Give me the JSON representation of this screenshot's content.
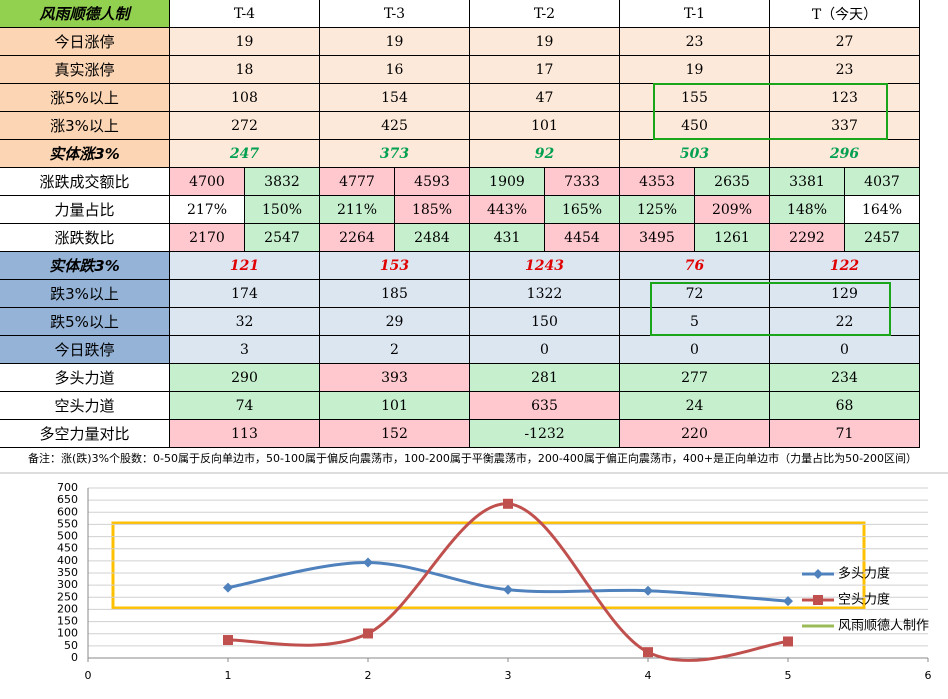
{
  "table": {
    "header": [
      "风雨顺德人制",
      "T-4",
      "T-3",
      "T-2",
      "T-1",
      "T（今天）"
    ],
    "header_bg": "#92d050",
    "rows": [
      {
        "label": "今日涨停",
        "label_bg": "#fcd5b4",
        "cells": [
          19,
          19,
          19,
          23,
          27
        ],
        "fills": [
          "#fde9d9",
          "#fde9d9",
          "#fde9d9",
          "#fde9d9",
          "#fde9d9"
        ]
      },
      {
        "label": "真实涨停",
        "label_bg": "#fcd5b4",
        "cells": [
          18,
          16,
          17,
          19,
          23
        ],
        "fills": [
          "#fde9d9",
          "#fde9d9",
          "#fde9d9",
          "#fde9d9",
          "#fde9d9"
        ]
      },
      {
        "label": "涨5%以上",
        "label_bg": "#fcd5b4",
        "cells": [
          108,
          154,
          47,
          155,
          123
        ],
        "fills": [
          "#fde9d9",
          "#fde9d9",
          "#fde9d9",
          "#fde9d9",
          "#fde9d9"
        ]
      },
      {
        "label": "涨3%以上",
        "label_bg": "#fcd5b4",
        "cells": [
          272,
          425,
          101,
          450,
          337
        ],
        "fills": [
          "#fde9d9",
          "#fde9d9",
          "#fde9d9",
          "#fde9d9",
          "#fde9d9"
        ]
      },
      {
        "label": "实体涨3%",
        "label_bg": "#fcd5b4",
        "cells": [
          247,
          373,
          92,
          503,
          296
        ],
        "fills": [
          "#fde9d9",
          "#fde9d9",
          "#fde9d9",
          "#fde9d9",
          "#fde9d9"
        ],
        "text_color": "#00a050",
        "emphasis": true
      },
      {
        "label": "涨跌成交额比",
        "label_bg": "#ffffff",
        "cells": [
          4700,
          3832,
          4777,
          4593,
          1909,
          7333,
          4353,
          2635,
          3381,
          4037
        ],
        "fills": [
          "#ffc7ce",
          "#c6efce",
          "#ffc7ce",
          "#ffc7ce",
          "#c6efce",
          "#ffc7ce",
          "#ffc7ce",
          "#c6efce",
          "#c6efce",
          "#c6efce"
        ]
      },
      {
        "label": "力量占比",
        "label_bg": "#ffffff",
        "cells": [
          "217%",
          "150%",
          "211%",
          "185%",
          "443%",
          "165%",
          "125%",
          "209%",
          "148%",
          "164%"
        ],
        "fills": [
          "#ffffff",
          "#c6efce",
          "#c6efce",
          "#ffc7ce",
          "#ffc7ce",
          "#c6efce",
          "#c6efce",
          "#ffc7ce",
          "#c6efce",
          "#ffffff"
        ]
      },
      {
        "label": "涨跌数比",
        "label_bg": "#ffffff",
        "cells": [
          2170,
          2547,
          2264,
          2484,
          431,
          4454,
          3495,
          1261,
          2292,
          2457
        ],
        "fills": [
          "#ffc7ce",
          "#c6efce",
          "#ffc7ce",
          "#c6efce",
          "#c6efce",
          "#ffc7ce",
          "#ffc7ce",
          "#c6efce",
          "#ffc7ce",
          "#c6efce"
        ]
      },
      {
        "label": "实体跌3%",
        "label_bg": "#95b3d7",
        "cells": [
          121,
          153,
          1243,
          76,
          122
        ],
        "fills": [
          "#dce6f1",
          "#dce6f1",
          "#dce6f1",
          "#dce6f1",
          "#dce6f1"
        ],
        "text_color": "#e00000",
        "emphasis": true
      },
      {
        "label": "跌3%以上",
        "label_bg": "#95b3d7",
        "cells": [
          174,
          185,
          1322,
          72,
          129
        ],
        "fills": [
          "#dce6f1",
          "#dce6f1",
          "#dce6f1",
          "#dce6f1",
          "#dce6f1"
        ]
      },
      {
        "label": "跌5%以上",
        "label_bg": "#95b3d7",
        "cells": [
          32,
          29,
          150,
          5,
          22
        ],
        "fills": [
          "#dce6f1",
          "#dce6f1",
          "#dce6f1",
          "#dce6f1",
          "#dce6f1"
        ]
      },
      {
        "label": "今日跌停",
        "label_bg": "#95b3d7",
        "cells": [
          3,
          2,
          0,
          0,
          0
        ],
        "fills": [
          "#dce6f1",
          "#dce6f1",
          "#dce6f1",
          "#dce6f1",
          "#dce6f1"
        ]
      },
      {
        "label": "多头力道",
        "label_bg": "#ffffff",
        "cells": [
          290,
          393,
          281,
          277,
          234
        ],
        "fills": [
          "#c6efce",
          "#ffc7ce",
          "#c6efce",
          "#c6efce",
          "#c6efce"
        ]
      },
      {
        "label": "空头力道",
        "label_bg": "#ffffff",
        "cells": [
          74,
          101,
          635,
          24,
          68
        ],
        "fills": [
          "#c6efce",
          "#c6efce",
          "#ffc7ce",
          "#c6efce",
          "#c6efce"
        ]
      },
      {
        "label": "多空力量对比",
        "label_bg": "#ffffff",
        "cells": [
          113,
          152,
          -1232,
          220,
          71
        ],
        "fills": [
          "#ffc7ce",
          "#ffc7ce",
          "#c6efce",
          "#ffc7ce",
          "#ffc7ce"
        ]
      }
    ],
    "note": "备注：涨(跌)3%个股数：0-50属于反向单边市，50-100属于偏反向震荡市，100-200属于平衡震荡市，200-400属于偏正向震荡市，400+是正向单边市（力量占比为50-200区间）"
  },
  "chart_data": {
    "type": "line",
    "x": [
      1,
      2,
      3,
      4,
      5
    ],
    "xlim": [
      0,
      6
    ],
    "xticks": [
      0,
      1,
      2,
      3,
      4,
      5,
      6
    ],
    "ylim": [
      0,
      700
    ],
    "yticks": [
      0,
      50,
      100,
      150,
      200,
      250,
      300,
      350,
      400,
      450,
      500,
      550,
      600,
      650,
      700
    ],
    "grid": true,
    "series": [
      {
        "name": "多头力度",
        "color": "#4f81bd",
        "values": [
          290,
          393,
          281,
          277,
          234
        ]
      },
      {
        "name": "空头力度",
        "color": "#c0504d",
        "values": [
          74,
          101,
          635,
          24,
          68
        ]
      },
      {
        "name": "风雨顺德人制作",
        "color": "#9bbb59",
        "values": [
          null,
          null,
          null,
          null,
          null
        ]
      }
    ],
    "legend": "right"
  }
}
